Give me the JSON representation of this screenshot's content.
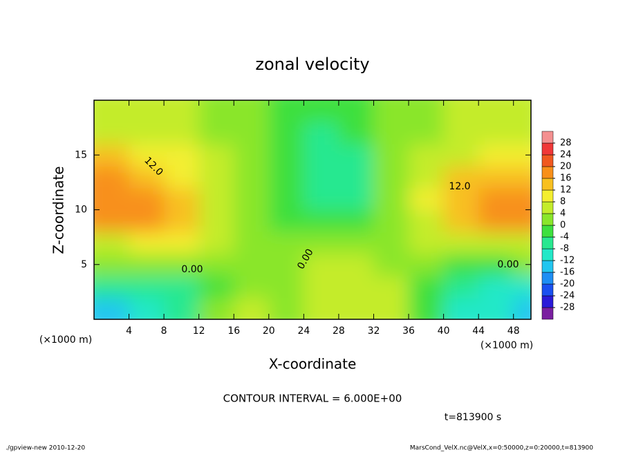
{
  "chart_data": {
    "type": "heatmap",
    "title": "zonal velocity",
    "x_label": "X-coordinate",
    "y_label": "Z-coordinate",
    "x_unit": "(×1000 m)",
    "y_unit": "(×1000 m)",
    "contour_interval": "CONTOUR INTERVAL = 6.000E+00",
    "time_label": "t=813900 s",
    "footer_left": "./gpview-new  2010-12-20",
    "footer_right": "MarsCond_VelX.nc@VelX,x=0:50000,z=0:20000,t=813900",
    "annotations": [
      "12.0",
      "12.0",
      "0.00",
      "0.00",
      "0.00"
    ],
    "x_bins": [
      0,
      4,
      8,
      12,
      16,
      20,
      24,
      28,
      32,
      36,
      40,
      44,
      48,
      50
    ],
    "y_bins": [
      0,
      2,
      4,
      6,
      8,
      10,
      12,
      14,
      16,
      18,
      20
    ],
    "z": [
      [
        -16,
        -12,
        -8,
        2,
        4,
        2,
        6,
        6,
        4,
        -4,
        -10,
        -12,
        -16
      ],
      [
        -8,
        -8,
        -6,
        -2,
        2,
        2,
        4,
        6,
        4,
        -2,
        -8,
        -10,
        -10
      ],
      [
        0,
        0,
        2,
        2,
        0,
        2,
        4,
        6,
        2,
        0,
        -2,
        -2,
        0
      ],
      [
        6,
        8,
        8,
        4,
        0,
        0,
        2,
        2,
        2,
        4,
        6,
        6,
        6
      ],
      [
        16,
        16,
        12,
        6,
        0,
        -2,
        -2,
        -4,
        0,
        6,
        12,
        16,
        18
      ],
      [
        18,
        16,
        12,
        6,
        0,
        -4,
        -6,
        -6,
        0,
        8,
        14,
        16,
        18
      ],
      [
        16,
        14,
        10,
        6,
        0,
        -4,
        -8,
        -6,
        0,
        6,
        12,
        14,
        14
      ],
      [
        12,
        10,
        8,
        4,
        0,
        -4,
        -8,
        -6,
        0,
        4,
        6,
        8,
        8
      ],
      [
        4,
        4,
        4,
        2,
        0,
        -2,
        -6,
        -4,
        0,
        2,
        4,
        4,
        4
      ],
      [
        4,
        4,
        4,
        2,
        0,
        -2,
        -4,
        -4,
        0,
        2,
        4,
        4,
        4
      ]
    ],
    "xlim": [
      0,
      50
    ],
    "ylim": [
      0,
      20
    ],
    "xticks": [
      4,
      8,
      12,
      16,
      20,
      24,
      28,
      32,
      36,
      40,
      44,
      48
    ],
    "yticks": [
      5,
      10,
      15
    ],
    "levels": [
      -28,
      -24,
      -20,
      -16,
      -12,
      -8,
      -4,
      0,
      4,
      8,
      12,
      16,
      20,
      24,
      28
    ],
    "colors": [
      "#7a1fa0",
      "#2a1ad8",
      "#1a50f0",
      "#1e8ef4",
      "#22c6f0",
      "#22e8c8",
      "#28e890",
      "#3ee03e",
      "#8ae62a",
      "#c4ec2a",
      "#f4ee30",
      "#f8c020",
      "#f8901a",
      "#f05820",
      "#f03838",
      "#f49090"
    ]
  }
}
